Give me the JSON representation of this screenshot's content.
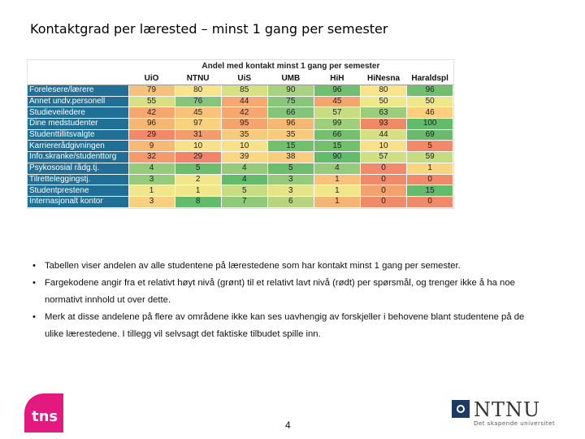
{
  "slide": {
    "title": "Kontaktgrad per lærested – minst 1 gang per semester",
    "page_number": "4"
  },
  "table": {
    "title": "Andel med kontakt minst 1 gang per semester",
    "columns": [
      "UiO",
      "NTNU",
      "UiS",
      "UMB",
      "HiH",
      "HiNesna",
      "Haraldspl"
    ],
    "rows": [
      {
        "label": "Forelesere/lærere",
        "values": [
          "79",
          "80",
          "85",
          "90",
          "96",
          "80",
          "96"
        ],
        "colors": [
          "#f4c27a",
          "#f9e48b",
          "#d6e282",
          "#a9d27e",
          "#6fbf6e",
          "#f9e48b",
          "#6fbf6e"
        ]
      },
      {
        "label": "Annet undv.personell",
        "values": [
          "55",
          "76",
          "44",
          "75",
          "45",
          "50",
          "50"
        ],
        "colors": [
          "#d7e083",
          "#85c67a",
          "#f5a86f",
          "#88c77b",
          "#f3a56d",
          "#efe88b",
          "#efe88b"
        ]
      },
      {
        "label": "Studieveiledere",
        "values": [
          "42",
          "45",
          "42",
          "66",
          "57",
          "63",
          "46"
        ],
        "colors": [
          "#f6a66e",
          "#f9c27a",
          "#f6a66e",
          "#83c57a",
          "#c8dd82",
          "#9ccd7c",
          "#fbcf7e"
        ]
      },
      {
        "label": "Dine medstudenter",
        "values": [
          "96",
          "97",
          "95",
          "96",
          "99",
          "93",
          "100"
        ],
        "colors": [
          "#f8b675",
          "#fbd07f",
          "#f5a46d",
          "#f8b675",
          "#9fce7c",
          "#f08a66",
          "#63bb6c"
        ]
      },
      {
        "label": "Studenttillitsvalgte",
        "values": [
          "29",
          "31",
          "35",
          "35",
          "66",
          "44",
          "69"
        ],
        "colors": [
          "#f4886a",
          "#f59c6d",
          "#f9ca7c",
          "#f9ca7c",
          "#75c06f",
          "#d6e083",
          "#6ab96c"
        ]
      },
      {
        "label": "Karriererådgivningen",
        "values": [
          "9",
          "10",
          "10",
          "15",
          "15",
          "10",
          "5"
        ],
        "colors": [
          "#f8b977",
          "#f9e08a",
          "#f9e08a",
          "#72bf6e",
          "#72bf6e",
          "#f9e08a",
          "#f08a6a"
        ]
      },
      {
        "label": "Info.skranke/studenttorg",
        "values": [
          "32",
          "29",
          "39",
          "38",
          "90",
          "57",
          "59"
        ],
        "colors": [
          "#f49a6c",
          "#f3846a",
          "#fbd784",
          "#f9cc7e",
          "#63bb6c",
          "#d0df83",
          "#c6dc81"
        ]
      },
      {
        "label": "Psykososial rådg.tj.",
        "values": [
          "4",
          "5",
          "4",
          "5",
          "4",
          "0",
          "1"
        ],
        "colors": [
          "#95cb7a",
          "#6ebd6c",
          "#95cb7a",
          "#6ebd6c",
          "#95cb7a",
          "#f08a6a",
          "#f9d580"
        ]
      },
      {
        "label": "Tilretteleggingstj.",
        "values": [
          "3",
          "2",
          "4",
          "3",
          "1",
          "0",
          "0"
        ],
        "colors": [
          "#95cb7a",
          "#f1e689",
          "#63bb6c",
          "#95cb7a",
          "#f9c27a",
          "#f08a6a",
          "#f08a6a"
        ]
      },
      {
        "label": "Studentprestene",
        "values": [
          "1",
          "1",
          "5",
          "3",
          "1",
          "0",
          "15"
        ],
        "colors": [
          "#f1e689",
          "#f1e689",
          "#c8dd82",
          "#e5e487",
          "#f1e689",
          "#f4a26d",
          "#63bb6c"
        ]
      },
      {
        "label": "Internasjonalt kontor",
        "values": [
          "3",
          "8",
          "7",
          "6",
          "1",
          "0",
          "0"
        ],
        "colors": [
          "#f9d07f",
          "#63bb6c",
          "#8fc97a",
          "#b7d57f",
          "#f6b575",
          "#f08a6a",
          "#f08a6a"
        ]
      }
    ]
  },
  "bullets": [
    "Tabellen viser andelen av alle studentene på lærestedene som har kontakt minst 1 gang per semester.",
    "Fargekodene angir fra et relativt høyt nivå (grønt) til et relativt lavt nivå (rødt)  per spørsmål, og trenger ikke å ha noe normativt innhold ut over dette.",
    "Merk at disse andelene på flere av områdene ikke kan ses uavhengig av forskjeller i behovene blant studentene på de ulike lærestedene. I tillegg vil selvsagt det faktiske tilbudet spille inn."
  ],
  "logos": {
    "tns": "tns",
    "ntnu_name": "NTNU",
    "ntnu_tagline": "Det skapende universitet"
  }
}
